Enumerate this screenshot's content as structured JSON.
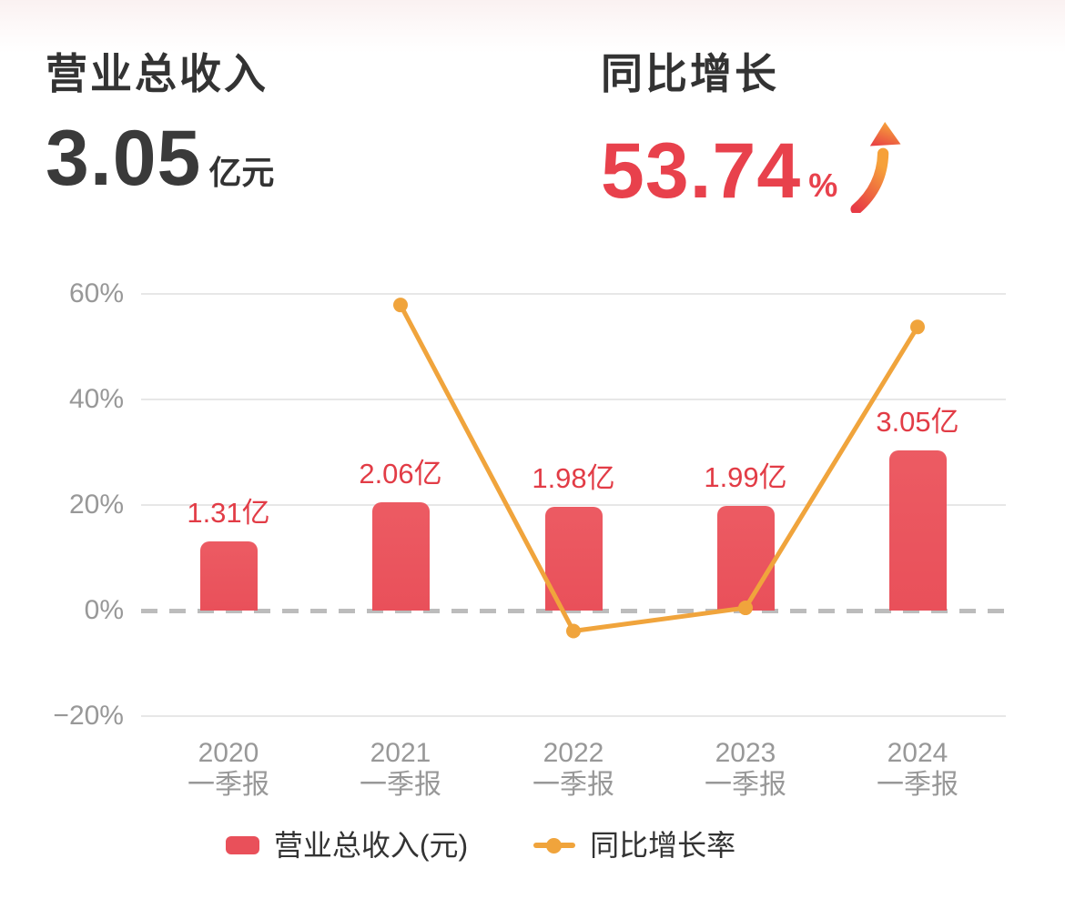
{
  "header": {
    "revenue": {
      "title": "营业总收入",
      "value": "3.05",
      "unit": "亿元"
    },
    "growth": {
      "title": "同比增长",
      "value": "53.74",
      "unit": "%",
      "arrow_icon": "up-trend-arrow-icon"
    }
  },
  "colors": {
    "bar": "#e9505a",
    "bar_top": "#ec5b63",
    "bar_label": "#e23c46",
    "line": "#f0a43c",
    "growth_red": "#e8414c",
    "title_text": "#333333",
    "axis_text": "#989898",
    "gridline": "#e7e7e7",
    "zero_line": "#bcbcbc",
    "legend_text": "#333333",
    "arrow_gradient_bottom": "#e73a45",
    "arrow_gradient_top": "#f6a13a"
  },
  "chart_data": {
    "type": "bar+line",
    "categories": [
      "2020",
      "2021",
      "2022",
      "2023",
      "2024"
    ],
    "category_sublabel": "一季报",
    "series": [
      {
        "name": "营业总收入(元)",
        "type": "bar",
        "unit": "亿",
        "values": [
          1.31,
          2.06,
          1.98,
          1.99,
          3.05
        ],
        "labels": [
          "1.31亿",
          "2.06亿",
          "1.98亿",
          "1.99亿",
          "3.05亿"
        ]
      },
      {
        "name": "同比增长率",
        "type": "line",
        "unit": "%",
        "values": [
          null,
          57.9,
          -3.88,
          0.51,
          53.74
        ]
      }
    ],
    "y_axis": {
      "tick_labels": [
        "60%",
        "40%",
        "20%",
        "0%",
        "−20%"
      ],
      "tick_values": [
        60,
        40,
        20,
        0,
        -20
      ],
      "ylim": [
        -20,
        60
      ],
      "grid": true,
      "zero_line_dashed": true
    },
    "legend": [
      {
        "label": "营业总收入(元)",
        "marker": "bar-swatch"
      },
      {
        "label": "同比增长率",
        "marker": "line-dot-swatch"
      }
    ],
    "legend_position": "bottom"
  }
}
